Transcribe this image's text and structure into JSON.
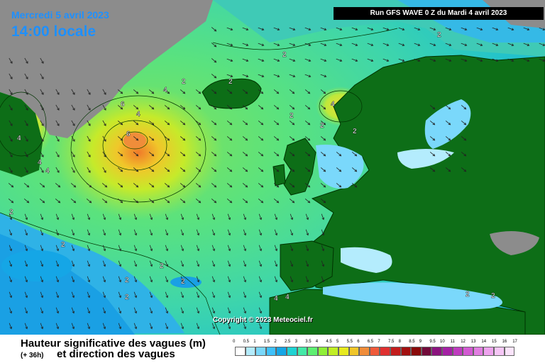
{
  "header": {
    "date": "Mercredi 5 avril 2023",
    "local_time": "14:00 locale",
    "run_info": "Run GFS WAVE 0 Z du Mardi 4 avril 2023"
  },
  "map": {
    "copyright": "Copyright © 2023 Meteociel.fr",
    "contour_labels": [
      "2",
      "2",
      "2",
      "2",
      "2",
      "2",
      "2",
      "2",
      "2",
      "2",
      "2",
      "2",
      "2",
      "2",
      "2",
      "4",
      "4",
      "4",
      "4",
      "4",
      "4",
      "4",
      "4",
      "6",
      "6"
    ]
  },
  "footer": {
    "title": "Hauteur significative des vagues (m)",
    "forecast": "(+ 36h)",
    "subtitle": "et direction des vagues"
  },
  "legend": {
    "labels": [
      "0",
      "0.5",
      "1",
      "1.5",
      "2",
      "2.5",
      "3",
      "3.5",
      "4",
      "4.5",
      "5",
      "5.5",
      "6",
      "6.5",
      "7",
      "7.5",
      "8",
      "8.5",
      "9",
      "9.5",
      "10",
      "11",
      "12",
      "13",
      "14",
      "15",
      "16",
      "17"
    ],
    "colors": [
      "#ffffff",
      "#b4ecfd",
      "#7ad8fb",
      "#3fc1fb",
      "#15a6e6",
      "#1fd3d3",
      "#43eaa8",
      "#5ef072",
      "#8ff038",
      "#c1ef25",
      "#e7ea1f",
      "#f0c62a",
      "#f08d3a",
      "#f05a3a",
      "#e03030",
      "#c31c1c",
      "#a31010",
      "#8a0a0a",
      "#720a3a",
      "#8c147f",
      "#a521a5",
      "#bf3cbf",
      "#d25ad2",
      "#e17ee1",
      "#eea3ee",
      "#f6c6f6",
      "#fbe4fb"
    ]
  },
  "colors": {
    "land": "#0d6e17",
    "land_outline": "#003300",
    "ice": "#ffffff",
    "greenland": "#8c8c8c",
    "arrow": "#222222",
    "title": "#1e90ff"
  }
}
